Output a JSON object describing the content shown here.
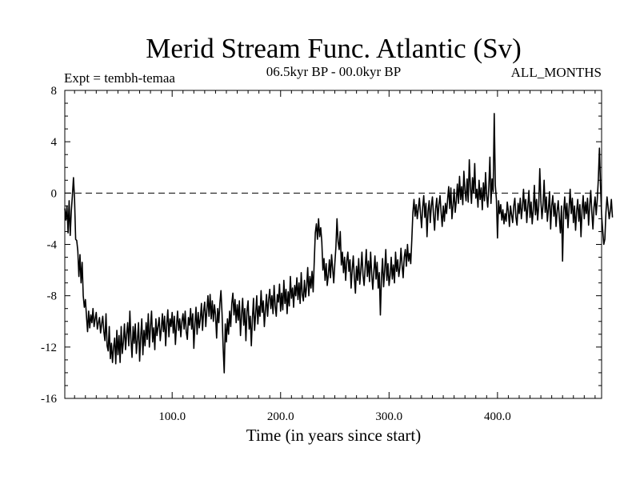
{
  "chart_data": {
    "type": "line",
    "title": "Merid Stream Func. Atlantic (Sv)",
    "subtitle_left": "Expt = tembh-temaa",
    "subtitle_center": "06.5kyr BP - 00.0kyr BP",
    "subtitle_right": "ALL_MONTHS",
    "xlabel": "Time (in years since start)",
    "ylabel": "",
    "xlim": [
      1,
      496
    ],
    "ylim": [
      -16,
      8
    ],
    "xticks": [
      100,
      200,
      300,
      400
    ],
    "xtick_labels": [
      "100.0",
      "200.0",
      "300.0",
      "400.0"
    ],
    "yticks": [
      -16,
      -12,
      -8,
      -4,
      0,
      4,
      8
    ],
    "ytick_labels": [
      "-16",
      "-12",
      "-8",
      "-4",
      "0",
      "4",
      "8"
    ],
    "reference_line": {
      "y": 0,
      "style": "dashed"
    },
    "series": [
      {
        "name": "Merid Stream Func. Atlantic",
        "x_start": 1,
        "x_step": 1,
        "values": [
          -1.2,
          -2.1,
          -1.0,
          -3.1,
          -0.6,
          -3.3,
          -1.4,
          -0.2,
          1.2,
          -0.5,
          -3.6,
          -3.7,
          -4.5,
          -6.5,
          -4.8,
          -7.0,
          -5.4,
          -8.0,
          -8.9,
          -8.3,
          -9.6,
          -10.8,
          -9.2,
          -10.5,
          -9.5,
          -10.1,
          -9.0,
          -10.4,
          -9.8,
          -9.3,
          -10.6,
          -10.1,
          -9.7,
          -10.9,
          -10.2,
          -9.6,
          -10.8,
          -11.5,
          -9.4,
          -11.9,
          -12.3,
          -10.4,
          -12.9,
          -11.7,
          -13.2,
          -12.0,
          -11.3,
          -13.3,
          -10.7,
          -12.6,
          -11.1,
          -13.2,
          -10.4,
          -12.5,
          -11.6,
          -10.2,
          -12.2,
          -11.0,
          -10.1,
          -11.9,
          -9.2,
          -11.4,
          -12.8,
          -10.4,
          -11.7,
          -10.2,
          -12.5,
          -11.4,
          -10.1,
          -13.1,
          -11.2,
          -9.8,
          -12.6,
          -10.7,
          -11.9,
          -10.1,
          -11.4,
          -9.4,
          -12.0,
          -10.4,
          -9.2,
          -11.6,
          -10.5,
          -12.2,
          -9.8,
          -11.1,
          -10.4,
          -9.7,
          -11.5,
          -10.6,
          -9.4,
          -10.8,
          -9.6,
          -11.9,
          -10.2,
          -9.1,
          -11.2,
          -9.8,
          -10.4,
          -9.3,
          -10.9,
          -9.6,
          -11.8,
          -10.3,
          -9.2,
          -10.7,
          -9.8,
          -11.2,
          -10.0,
          -9.4,
          -10.6,
          -9.2,
          -10.8,
          -11.4,
          -9.7,
          -10.3,
          -9.0,
          -10.6,
          -9.4,
          -12.1,
          -10.2,
          -8.9,
          -11.0,
          -9.3,
          -10.5,
          -9.8,
          -8.6,
          -10.7,
          -9.2,
          -8.5,
          -10.4,
          -9.1,
          -8.0,
          -9.6,
          -7.9,
          -9.8,
          -8.4,
          -10.0,
          -8.7,
          -9.5,
          -11.3,
          -9.0,
          -10.1,
          -8.6,
          -7.6,
          -9.4,
          -12.0,
          -14.0,
          -10.2,
          -11.6,
          -9.8,
          -11.0,
          -9.2,
          -10.4,
          -8.6,
          -7.8,
          -9.5,
          -8.3,
          -10.1,
          -8.7,
          -9.9,
          -8.4,
          -11.1,
          -9.5,
          -8.2,
          -10.3,
          -9.0,
          -11.5,
          -9.2,
          -8.4,
          -10.6,
          -9.6,
          -11.9,
          -9.8,
          -8.2,
          -10.7,
          -9.4,
          -8.0,
          -10.2,
          -8.8,
          -9.6,
          -7.6,
          -9.3,
          -8.4,
          -10.4,
          -9.1,
          -7.9,
          -9.6,
          -8.3,
          -7.5,
          -9.0,
          -8.0,
          -9.4,
          -7.2,
          -8.8,
          -9.6,
          -7.9,
          -8.5,
          -7.1,
          -9.2,
          -7.8,
          -9.1,
          -6.8,
          -8.6,
          -7.5,
          -9.4,
          -7.7,
          -8.8,
          -6.5,
          -8.2,
          -7.4,
          -8.9,
          -7.2,
          -8.0,
          -6.6,
          -8.3,
          -7.0,
          -8.6,
          -6.2,
          -7.9,
          -8.4,
          -6.8,
          -8.1,
          -7.3,
          -5.8,
          -8.0,
          -6.5,
          -7.4,
          -6.1,
          -7.7,
          -5.4,
          -3.1,
          -2.4,
          -3.6,
          -2.0,
          -3.4,
          -2.7,
          -3.8,
          -6.0,
          -5.1,
          -6.8,
          -5.5,
          -7.2,
          -6.4,
          -5.2,
          -6.6,
          -4.8,
          -5.9,
          -7.0,
          -5.5,
          -4.2,
          -2.0,
          -3.8,
          -4.4,
          -3.0,
          -5.6,
          -4.6,
          -6.2,
          -5.0,
          -6.8,
          -5.3,
          -4.6,
          -6.1,
          -5.2,
          -7.4,
          -6.0,
          -4.9,
          -6.6,
          -7.8,
          -5.7,
          -6.8,
          -5.1,
          -7.1,
          -6.0,
          -4.6,
          -6.4,
          -7.2,
          -5.8,
          -4.4,
          -6.5,
          -5.3,
          -6.9,
          -4.6,
          -6.3,
          -7.5,
          -6.1,
          -4.9,
          -6.7,
          -5.4,
          -7.4,
          -6.2,
          -9.5,
          -6.6,
          -5.1,
          -7.3,
          -6.0,
          -4.4,
          -6.8,
          -5.5,
          -7.2,
          -6.4,
          -5.0,
          -6.7,
          -5.6,
          -7.0,
          -4.6,
          -6.1,
          -5.2,
          -6.5,
          -5.8,
          -4.3,
          -5.6,
          -6.6,
          -5.0,
          -4.4,
          -5.7,
          -4.0,
          -5.3,
          -4.7,
          -5.5,
          -3.6,
          -1.5,
          -0.5,
          -1.8,
          -0.9,
          -2.0,
          -1.2,
          -0.4,
          -1.6,
          -2.7,
          -1.1,
          -0.2,
          -1.9,
          -0.8,
          -3.4,
          -1.4,
          -0.6,
          -2.3,
          -1.0,
          -0.3,
          -1.7,
          -2.9,
          -1.2,
          -0.4,
          -2.1,
          -0.9,
          -0.2,
          -1.5,
          -2.6,
          -1.0,
          -2.2,
          -0.8,
          -1.6,
          -0.5,
          0.5,
          -1.2,
          0.4,
          -2.0,
          -1.0,
          0.3,
          -1.5,
          -0.6,
          0.7,
          -0.8,
          1.3,
          -0.5,
          0.5,
          -0.9,
          1.7,
          0.2,
          -0.6,
          1.1,
          -0.7,
          2.6,
          0.5,
          -0.8,
          1.2,
          0.0,
          2.3,
          -0.4,
          0.3,
          -1.1,
          1.0,
          -0.5,
          0.4,
          -1.3,
          0.8,
          -0.6,
          1.6,
          -0.2,
          -1.1,
          0.5,
          2.8,
          -0.8,
          1.1,
          0.1,
          6.2,
          0.6,
          -0.5,
          -3.5,
          -0.6,
          -1.6,
          -0.9,
          -2.1,
          -1.3,
          -2.4,
          -1.6,
          -2.2,
          -0.7,
          -1.4,
          -2.6,
          -1.0,
          -1.7,
          -2.3,
          -1.0,
          -0.4,
          -1.9,
          -2.5,
          -0.8,
          -1.6,
          -0.4,
          -2.0,
          -1.1,
          0.3,
          -1.4,
          -0.5,
          -2.3,
          -1.0,
          0.2,
          -1.9,
          -0.7,
          -2.4,
          -1.3,
          0.6,
          -1.7,
          -0.5,
          -2.1,
          -1.0,
          1.9,
          -0.6,
          -2.0,
          -0.9,
          1.0,
          -1.5,
          -0.3,
          -2.2,
          -1.2,
          0.1,
          -2.8,
          -1.0,
          -0.2,
          -1.8,
          -0.8,
          -2.6,
          -1.4,
          -0.6,
          -1.9,
          -3.1,
          -1.0,
          -5.3,
          -1.5,
          -0.3,
          -2.0,
          -0.8,
          -2.7,
          -1.2,
          0.3,
          -1.6,
          -0.4,
          -2.3,
          -1.0,
          -2.9,
          -1.4,
          -0.5,
          -2.2,
          -0.9,
          -3.4,
          -1.3,
          -0.2,
          -2.0,
          -0.7,
          -1.6,
          -0.4,
          -2.5,
          -1.0,
          0.2,
          -1.5,
          -2.8,
          -1.1,
          -0.3,
          -1.7,
          -0.5,
          1.1,
          3.5,
          0.6,
          -1.7,
          -2.9,
          -4.0,
          -3.6,
          -1.5,
          -0.3,
          -1.1,
          -2.0,
          -1.4,
          -0.5,
          -1.9
        ]
      }
    ]
  }
}
